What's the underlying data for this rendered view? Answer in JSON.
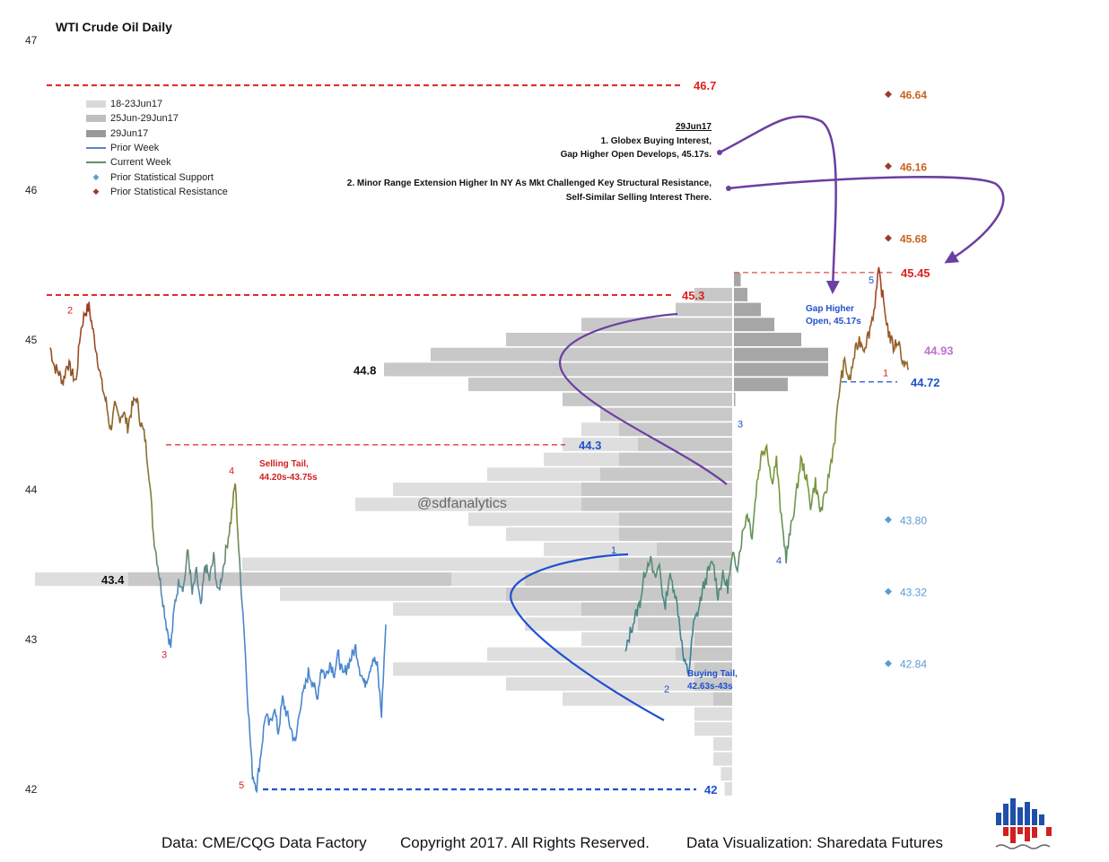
{
  "title": "WTI Crude Oil Daily",
  "watermark": "@sdfanalytics",
  "footer": {
    "data": "Data: CME/CQG Data Factory",
    "copyright": "Copyright 2017. All Rights Reserved.",
    "viz": "Data Visualization: Sharedata Futures"
  },
  "legend": [
    {
      "label": "18-23Jun17",
      "kind": "bar",
      "color": "#d9d9d9"
    },
    {
      "label": "25Jun-29Jun17",
      "kind": "bar",
      "color": "#bfbfbf"
    },
    {
      "label": "29Jun17",
      "kind": "bar",
      "color": "#999999"
    },
    {
      "label": "Prior Week",
      "kind": "line",
      "color": "#5b86c4"
    },
    {
      "label": "Current Week",
      "kind": "line",
      "color": "#6a8a6a"
    },
    {
      "label": "Prior Statistical Support",
      "kind": "diamond",
      "color": "#5b9bd5"
    },
    {
      "label": "Prior Statistical Resistance",
      "kind": "diamond",
      "color": "#9c3c2c"
    }
  ],
  "colors": {
    "resistance": "#e02020",
    "support": "#2050d0",
    "annotation_curve": "#6b3fa0",
    "prior_week": "#4a86cf",
    "current_week_start": "#2f7f9f",
    "current_week_end": "#a03020"
  },
  "chart_data": {
    "type": "line",
    "ylim": [
      42,
      47
    ],
    "yticks": [
      42,
      43,
      44,
      45,
      46,
      47
    ],
    "price_labels": [
      {
        "text": "46.7",
        "value": 46.7,
        "color": "red"
      },
      {
        "text": "45.3",
        "value": 45.3,
        "color": "red"
      },
      {
        "text": "44.3",
        "value": 44.3,
        "color": "blue"
      },
      {
        "text": "42",
        "value": 42.0,
        "color": "blue"
      },
      {
        "text": "45.45",
        "value": 45.45,
        "color": "red"
      },
      {
        "text": "44.72",
        "value": 44.72,
        "color": "blue"
      },
      {
        "text": "44.93",
        "value": 44.93,
        "color": "violet"
      },
      {
        "text": "44.8",
        "value": 44.8,
        "color": "black"
      },
      {
        "text": "43.4",
        "value": 43.4,
        "color": "black"
      }
    ],
    "statistical_resistance": [
      46.64,
      46.16,
      45.68
    ],
    "statistical_support": [
      43.8,
      43.32,
      42.84
    ],
    "prior_week_series": [
      44.95,
      44.82,
      44.78,
      44.72,
      44.85,
      44.78,
      44.72,
      45.05,
      45.18,
      45.22,
      45.05,
      44.88,
      44.7,
      44.58,
      44.4,
      44.55,
      44.48,
      44.52,
      44.42,
      44.55,
      44.62,
      44.45,
      44.35,
      44.1,
      43.7,
      43.5,
      43.3,
      43.1,
      42.95,
      43.25,
      43.4,
      43.35,
      43.6,
      43.3,
      43.45,
      43.2,
      43.5,
      43.4,
      43.55,
      43.3,
      43.45,
      43.62,
      43.8,
      44.05,
      43.5,
      43.1,
      42.55,
      42.1,
      42.02,
      42.25,
      42.5,
      42.42,
      42.55,
      42.38,
      42.6,
      42.5,
      42.4,
      42.3,
      42.55,
      42.65,
      42.78,
      42.72,
      42.6,
      42.82,
      42.75,
      42.85,
      42.78,
      42.9,
      42.75,
      42.82,
      42.88,
      42.95,
      42.8,
      42.7,
      42.78,
      42.88,
      42.82,
      42.5,
      43.1
    ],
    "current_week_series": [
      42.9,
      43.05,
      43.15,
      43.25,
      43.45,
      43.55,
      43.4,
      43.5,
      43.2,
      43.42,
      43.35,
      43.15,
      42.85,
      42.78,
      43.1,
      43.2,
      43.35,
      43.45,
      43.52,
      43.3,
      43.42,
      43.35,
      43.55,
      43.5,
      43.7,
      43.85,
      43.7,
      44.05,
      44.25,
      44.3,
      44.05,
      44.2,
      43.8,
      43.55,
      43.75,
      43.95,
      44.2,
      44.1,
      43.9,
      44.05,
      43.85,
      43.95,
      44.15,
      44.35,
      44.7,
      44.85,
      44.72,
      44.9,
      45.0,
      44.95,
      45.05,
      45.2,
      45.45,
      45.25,
      45.05,
      44.95,
      45.0,
      44.85,
      44.8
    ],
    "volume_profile": {
      "rows": [
        45.4,
        45.3,
        45.2,
        45.1,
        45.0,
        44.9,
        44.8,
        44.7,
        44.6,
        44.5,
        44.4,
        44.3,
        44.2,
        44.1,
        44.0,
        43.9,
        43.8,
        43.7,
        43.6,
        43.5,
        43.4,
        43.3,
        43.2,
        43.1,
        43.0,
        42.9,
        42.8,
        42.7,
        42.6,
        42.5,
        42.4,
        42.3,
        42.2,
        42.1,
        42.0
      ],
      "week_18_23jun": [
        0,
        0,
        0,
        0,
        0,
        0,
        0,
        0,
        0,
        0,
        0.1,
        0.2,
        0.2,
        0.3,
        0.5,
        0.6,
        0.4,
        0.3,
        0.3,
        1.0,
        1.3,
        0.6,
        0.5,
        0.3,
        0.3,
        0.5,
        0.8,
        0.5,
        0.4,
        0.1,
        0.1,
        0.05,
        0.05,
        0.03,
        0.02
      ],
      "week_25_29jun": [
        0,
        0.1,
        0.15,
        0.4,
        0.6,
        0.8,
        0.9,
        0.7,
        0.45,
        0.35,
        0.3,
        0.25,
        0.3,
        0.35,
        0.4,
        0.4,
        0.3,
        0.3,
        0.2,
        0.3,
        0.55,
        0.6,
        0.4,
        0.25,
        0.1,
        0.15,
        0.1,
        0.1,
        0.05,
        0,
        0,
        0,
        0,
        0,
        0
      ],
      "day_29jun": [
        0.05,
        0.1,
        0.2,
        0.3,
        0.5,
        0.7,
        0.7,
        0.4,
        0.01,
        0,
        0,
        0,
        0,
        0,
        0,
        0,
        0,
        0,
        0,
        0,
        0,
        0,
        0,
        0,
        0,
        0,
        0,
        0,
        0,
        0,
        0,
        0,
        0,
        0,
        0
      ]
    },
    "swing_labels_prior": [
      {
        "text": "2",
        "color": "red"
      },
      {
        "text": "3",
        "color": "red"
      },
      {
        "text": "4",
        "color": "red"
      },
      {
        "text": "5",
        "color": "red"
      }
    ],
    "swing_labels_current": [
      {
        "text": "1",
        "color": "blue"
      },
      {
        "text": "2",
        "color": "blue"
      },
      {
        "text": "3",
        "color": "blue"
      },
      {
        "text": "4",
        "color": "blue"
      },
      {
        "text": "5",
        "color": "blue"
      },
      {
        "text": "1",
        "color": "red"
      }
    ],
    "annotations": {
      "selling_tail": [
        "Selling Tail,",
        "44.20s-43.75s"
      ],
      "buying_tail": [
        "Buying Tail,",
        "42.63s-43s"
      ],
      "gap_higher": [
        "Gap Higher",
        "Open, 45.17s"
      ],
      "note_date": "29Jun17",
      "note1": [
        "1. Globex Buying Interest,",
        "Gap Higher Open Develops, 45.17s."
      ],
      "note2": [
        "2. Minor Range Extension Higher In NY As Mkt Challenged Key Structural Resistance,",
        "Self-Similar Selling Interest There."
      ]
    }
  }
}
